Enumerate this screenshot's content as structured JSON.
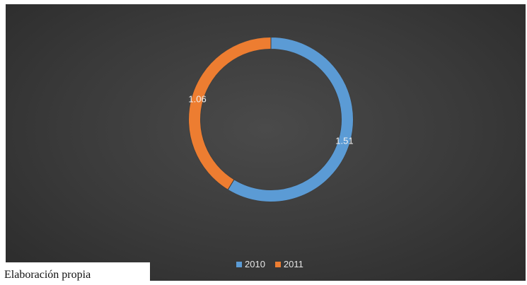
{
  "chart_data": {
    "type": "pie",
    "variant": "doughnut",
    "categories": [
      "2010",
      "2011"
    ],
    "values": [
      1.51,
      1.06
    ],
    "data_labels": [
      "1.51",
      "1.06"
    ],
    "colors": [
      "#5b9bd5",
      "#ed7d31"
    ],
    "title": "",
    "legend": {
      "placement": "bottom",
      "entries": [
        "2010",
        "2011"
      ]
    }
  },
  "source_note": "Elaboración propia"
}
